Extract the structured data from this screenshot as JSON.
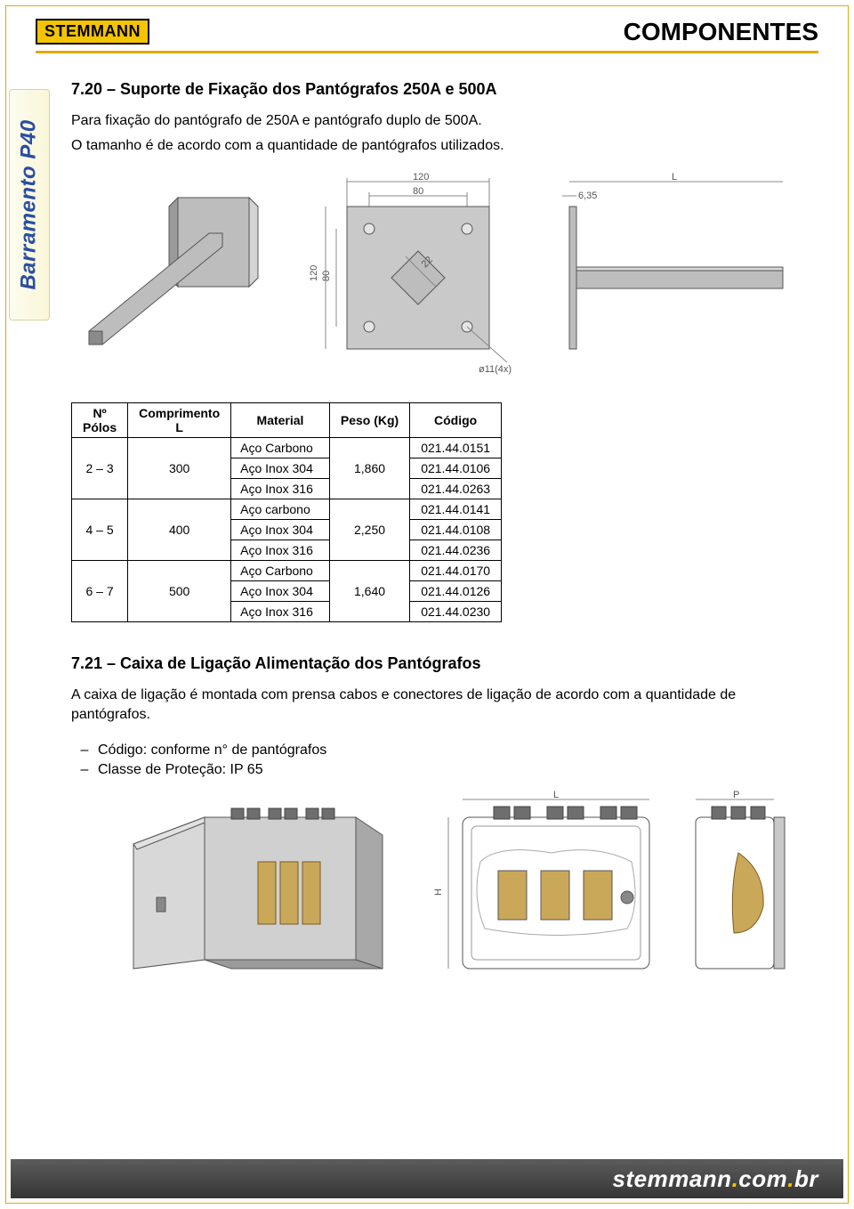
{
  "header": {
    "logo_text": "STEMMANN",
    "title": "COMPONENTES"
  },
  "side_tab": "Barramento P40",
  "section1": {
    "title": "7.20 – Suporte de Fixação dos Pantógrafos 250A e 500A",
    "p1": "Para fixação do pantógrafo de 250A e pantógrafo duplo de 500A.",
    "p2": "O tamanho é de acordo com a quantidade de pantógrafos utilizados.",
    "drawing_dims": {
      "top_120": "120",
      "top_80": "80",
      "right_L": "L",
      "right_635": "6,35",
      "side_120": "120",
      "side_80": "80",
      "diag_22": "22",
      "phi": "ø11(4x)"
    }
  },
  "table": {
    "headers": {
      "polos": "Nº\nPólos",
      "comp": "Comprimento\nL",
      "mat": "Material",
      "peso": "Peso (Kg)",
      "cod": "Código"
    },
    "groups": [
      {
        "polos": "2 – 3",
        "comp": "300",
        "peso": "1,860",
        "rows": [
          {
            "mat": "Aço Carbono",
            "cod": "021.44.0151"
          },
          {
            "mat": "Aço Inox 304",
            "cod": "021.44.0106"
          },
          {
            "mat": "Aço Inox 316",
            "cod": "021.44.0263"
          }
        ]
      },
      {
        "polos": "4 – 5",
        "comp": "400",
        "peso": "2,250",
        "rows": [
          {
            "mat": "Aço carbono",
            "cod": "021.44.0141"
          },
          {
            "mat": "Aço Inox 304",
            "cod": "021.44.0108"
          },
          {
            "mat": "Aço Inox 316",
            "cod": "021.44.0236"
          }
        ]
      },
      {
        "polos": "6 – 7",
        "comp": "500",
        "peso": "1,640",
        "rows": [
          {
            "mat": "Aço Carbono",
            "cod": "021.44.0170"
          },
          {
            "mat": "Aço Inox 304",
            "cod": "021.44.0126"
          },
          {
            "mat": "Aço Inox 316",
            "cod": "021.44.0230"
          }
        ]
      }
    ]
  },
  "section2": {
    "title": "7.21 – Caixa de Ligação   Alimentação dos Pantógrafos",
    "p1": "A caixa de ligação é montada com prensa cabos e conectores de ligação de acordo com a quantidade de pantógrafos.",
    "b1": "Código: conforme n° de pantógrafos",
    "b2": "Classe de Proteção: IP 65",
    "drawing_dims": {
      "L": "L",
      "P": "P",
      "H": "H"
    }
  },
  "footer": {
    "text_main": "stemmann",
    "text_dom": "com",
    "text_cc": "br"
  },
  "colors": {
    "accent": "#e6a800",
    "logo_bg": "#f5c400",
    "side_text": "#2a4ea0",
    "metal_light": "#c9c9c9",
    "metal_mid": "#9e9e9e",
    "metal_dark": "#6e6e6e",
    "brass": "#caa85a",
    "footer_grad_top": "#5c5c5c",
    "footer_grad_bot": "#353535"
  }
}
